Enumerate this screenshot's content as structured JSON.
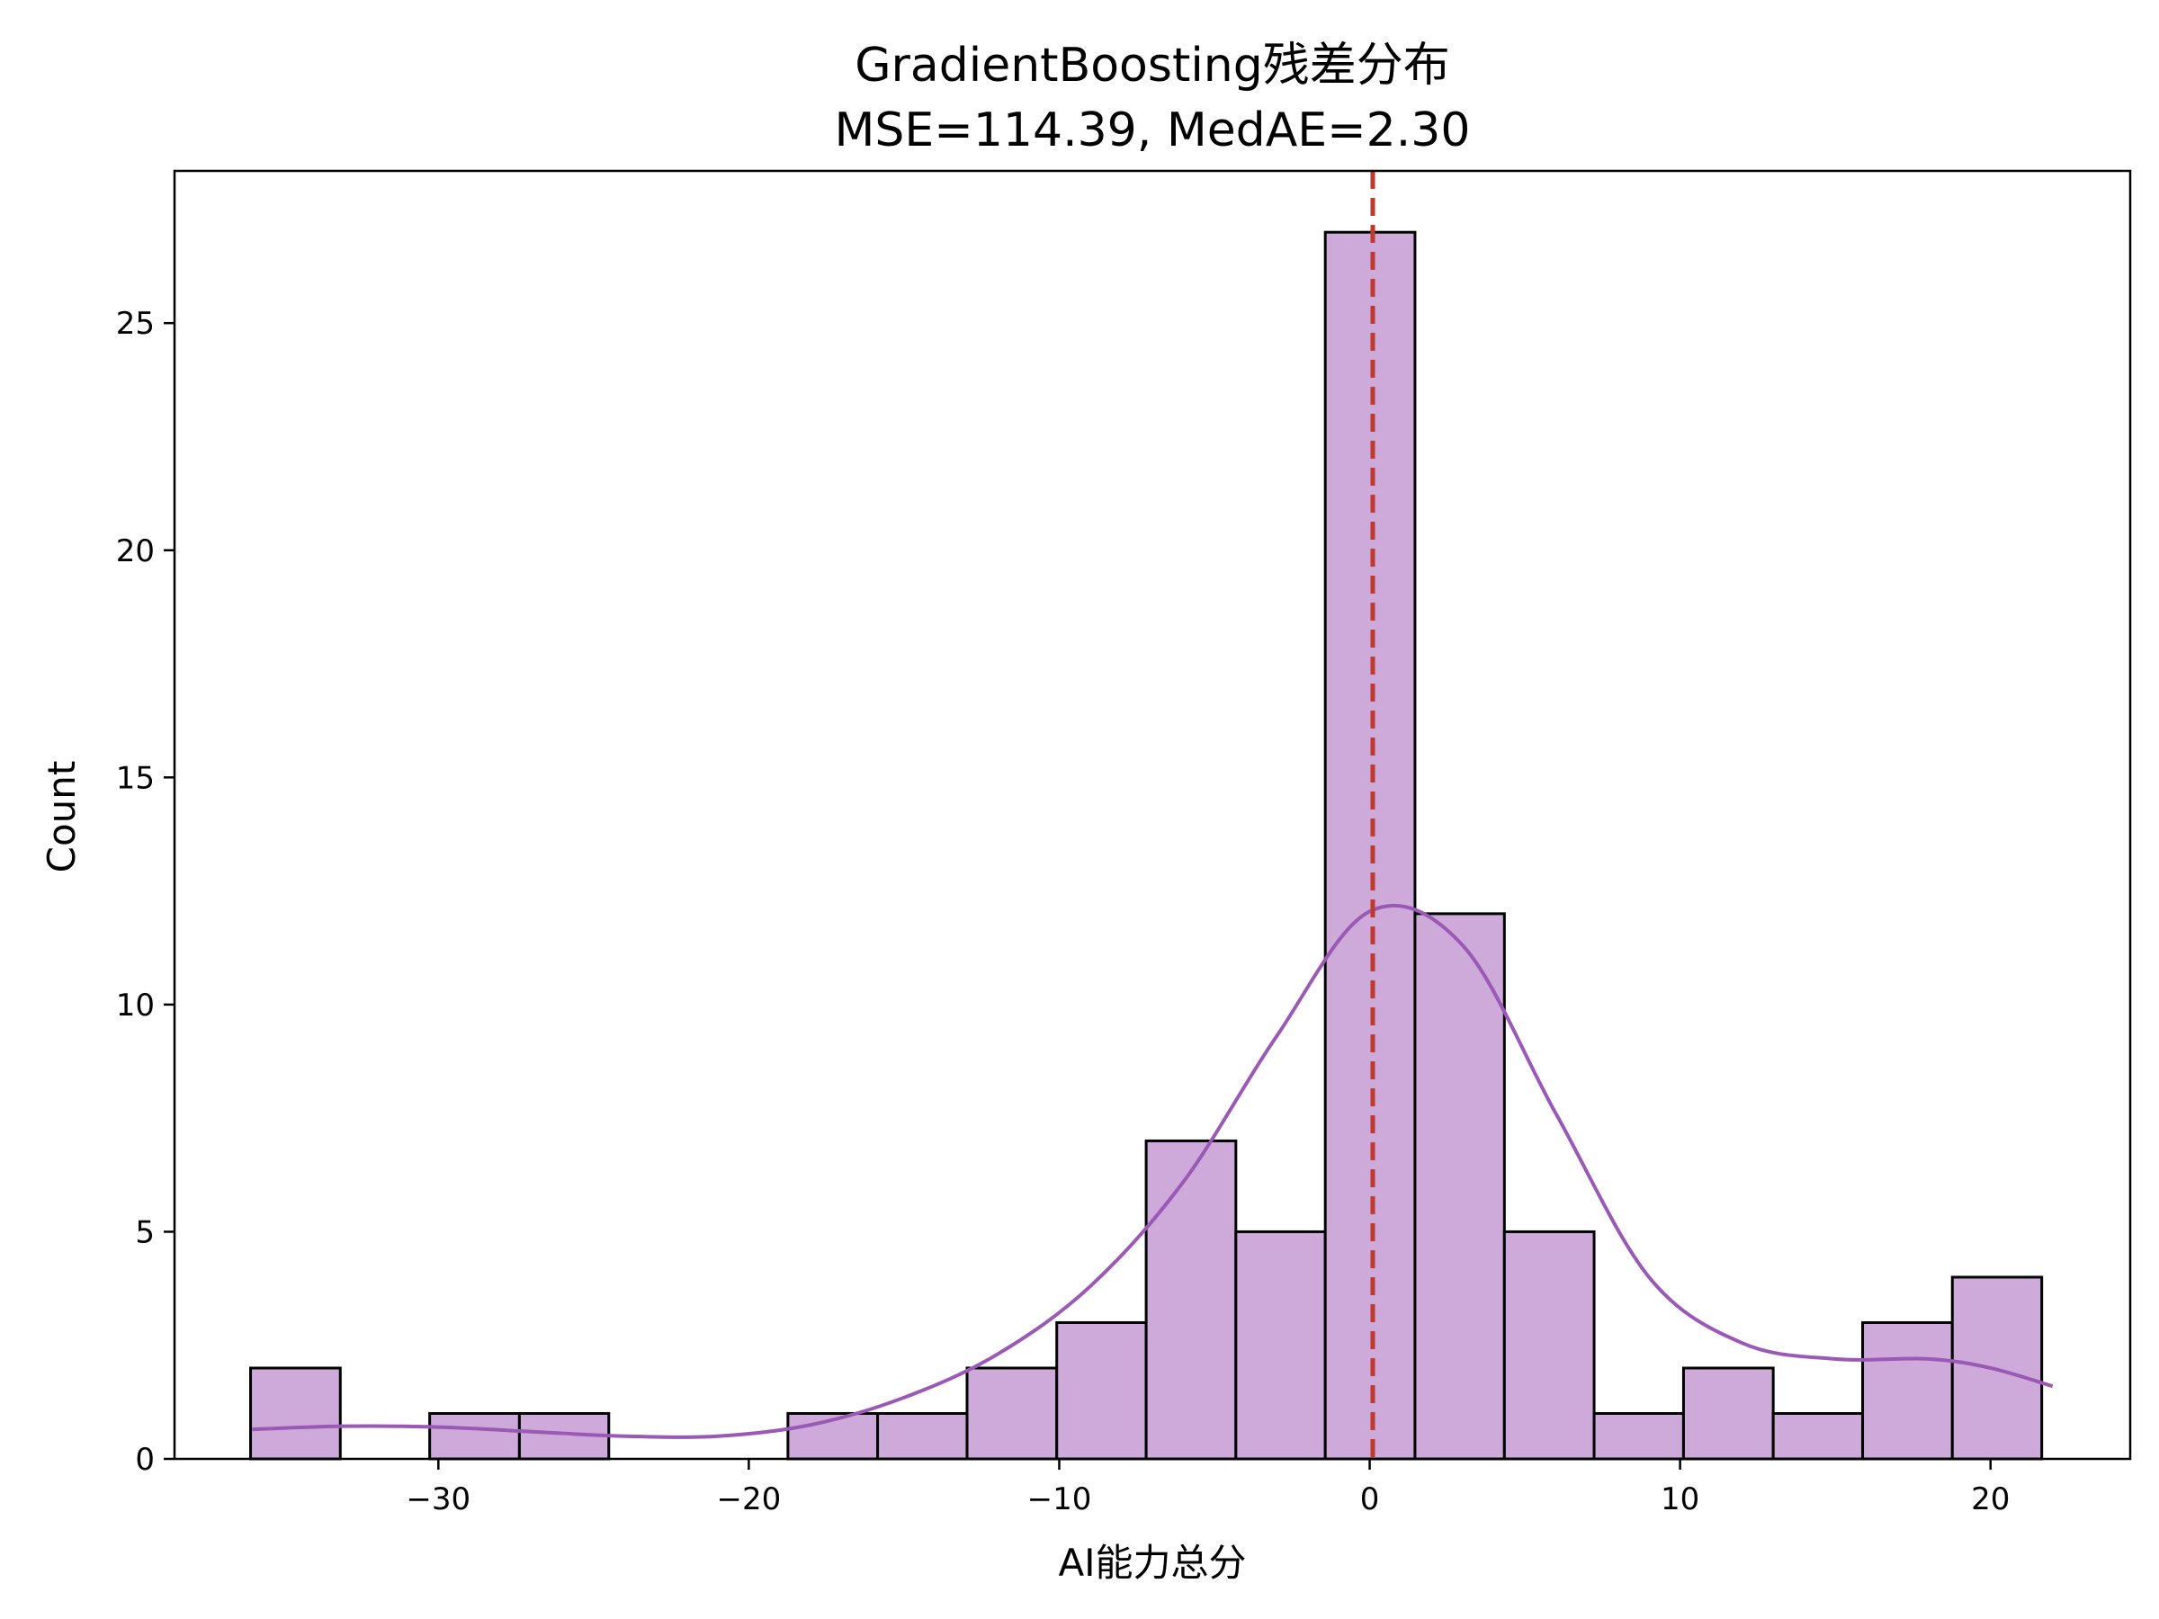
{
  "chart_data": {
    "type": "bar",
    "title": "GradientBoosting残差分布",
    "subtitle": "MSE=114.39, MedAE=2.30",
    "xlabel": "AI能力总分",
    "ylabel": "Count",
    "xlim": [
      -38.5,
      24.5
    ],
    "ylim": [
      0,
      28.35
    ],
    "x_ticks": [
      -30,
      -20,
      -10,
      0,
      10,
      20
    ],
    "x_tick_labels": [
      "−30",
      "−20",
      "−10",
      "0",
      "10",
      "20"
    ],
    "y_ticks": [
      0,
      5,
      10,
      15,
      20,
      25
    ],
    "y_tick_labels": [
      "0",
      "5",
      "10",
      "15",
      "20",
      "25"
    ],
    "bin_edges": [
      -36.05,
      -33.16,
      -30.28,
      -27.39,
      -24.51,
      -21.62,
      -18.74,
      -15.85,
      -12.97,
      -10.08,
      -7.2,
      -4.31,
      -1.43,
      1.46,
      4.34,
      7.23,
      10.11,
      13.0,
      15.88,
      18.77,
      21.65
    ],
    "counts": [
      2,
      0,
      1,
      1,
      0,
      0,
      1,
      1,
      2,
      3,
      7,
      5,
      27,
      12,
      5,
      1,
      2,
      1,
      3,
      4
    ],
    "kde": {
      "x": [
        -36,
        -33,
        -30,
        -27,
        -24,
        -21,
        -18,
        -15,
        -12,
        -9,
        -6,
        -3,
        0,
        3,
        6,
        9,
        12,
        15,
        18,
        20,
        22
      ],
      "y": [
        0.65,
        0.72,
        0.7,
        0.6,
        0.5,
        0.5,
        0.75,
        1.35,
        2.3,
        3.8,
        6.1,
        9.3,
        12.05,
        11.3,
        7.6,
        4.0,
        2.55,
        2.2,
        2.2,
        2.0,
        1.6
      ]
    },
    "median_line": {
      "x": 0.1
    },
    "colors": {
      "bar_fill": "#cdaada",
      "bar_edge": "#000000",
      "kde_line": "#9b59b6",
      "median_line": "#c0392b"
    },
    "grid": false,
    "legend": "none"
  }
}
